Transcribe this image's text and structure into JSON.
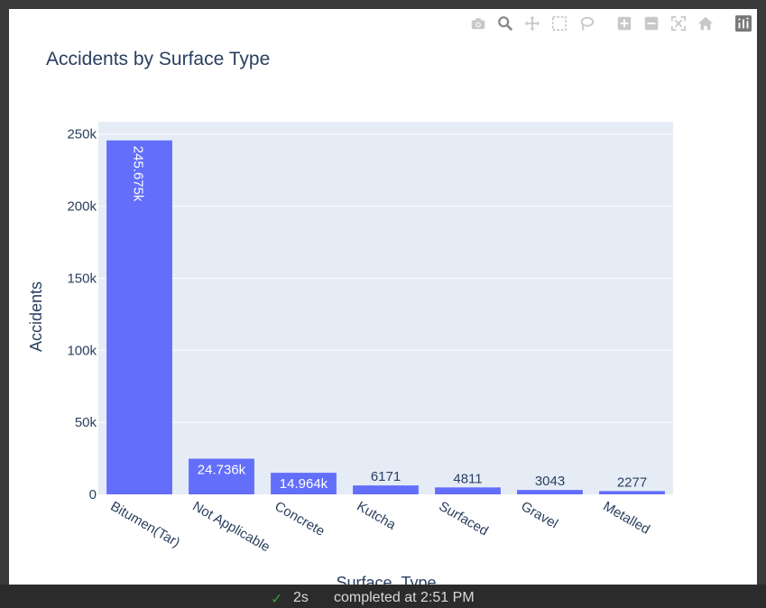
{
  "modebar": {
    "icons": [
      "camera-icon",
      "zoom-icon",
      "pan-icon",
      "box-select-icon",
      "lasso-icon",
      "zoom-in-icon",
      "zoom-out-icon",
      "autoscale-icon",
      "reset-axes-icon",
      "plotly-logo-icon"
    ],
    "icon_color": "#c8c8c8",
    "active_color": "#8a8a8a"
  },
  "status": {
    "check": "✓",
    "duration": "2s",
    "completed": "completed at 2:51 PM"
  },
  "chart_data": {
    "type": "bar",
    "title": "Accidents by Surface Type",
    "xlabel": "Surface_Type",
    "ylabel": "Accidents",
    "categories": [
      "Bitumen(Tar)",
      "Not Applicable",
      "Concrete",
      "Kutcha",
      "Surfaced",
      "Gravel",
      "Metalled"
    ],
    "values": [
      245675,
      24736,
      14964,
      6171,
      4811,
      3043,
      2277
    ],
    "data_labels": [
      "245.675k",
      "24.736k",
      "14.964k",
      "6171",
      "4811",
      "3043",
      "2277"
    ],
    "ylim": [
      0,
      258600
    ],
    "yticks": [
      0,
      50000,
      100000,
      150000,
      200000,
      250000
    ],
    "ytick_labels": [
      "0",
      "50k",
      "100k",
      "150k",
      "200k",
      "250k"
    ],
    "grid": true,
    "colors": {
      "bar": "#636efa",
      "plot_bg": "#e5ecf6",
      "grid": "#ffffff",
      "text": "#2a3f5f"
    }
  }
}
